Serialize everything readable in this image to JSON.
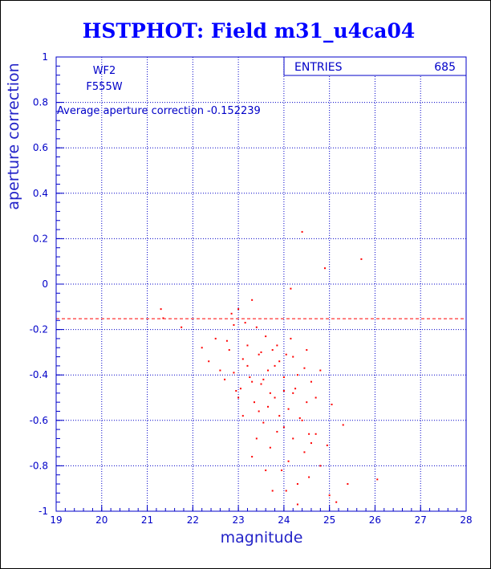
{
  "chart_data": {
    "type": "scatter",
    "title": "HSTPHOT: Field m31_u4ca04",
    "xlabel": "magnitude",
    "ylabel": "aperture correction",
    "xlim": [
      19,
      28
    ],
    "ylim": [
      -1,
      1
    ],
    "xticks": [
      "19",
      "20",
      "21",
      "22",
      "23",
      "24",
      "25",
      "26",
      "27",
      "28"
    ],
    "yticks": [
      "-1",
      "-0.8",
      "-0.6",
      "-0.4",
      "-0.2",
      "0",
      "0.2",
      "0.4",
      "0.6",
      "0.8",
      "1"
    ],
    "grid": true,
    "annotations": {
      "chip": "WF2",
      "filter": "F555W",
      "average": "Average aperture correction -0.152239"
    },
    "stats_box": {
      "label": "ENTRIES",
      "value": "685"
    },
    "reference_line": {
      "y": -0.152239,
      "style": "dashed"
    },
    "points": [
      [
        21.3,
        -0.11
      ],
      [
        21.35,
        -0.15
      ],
      [
        21.75,
        -0.19
      ],
      [
        22.2,
        -0.28
      ],
      [
        22.35,
        -0.34
      ],
      [
        22.5,
        -0.24
      ],
      [
        22.6,
        -0.38
      ],
      [
        22.75,
        -0.25
      ],
      [
        22.8,
        -0.29
      ],
      [
        22.85,
        -0.13
      ],
      [
        22.9,
        -0.18
      ],
      [
        22.95,
        -0.47
      ],
      [
        23.0,
        -0.11
      ],
      [
        23.05,
        -0.46
      ],
      [
        23.1,
        -0.33
      ],
      [
        23.15,
        -0.17
      ],
      [
        23.2,
        -0.27
      ],
      [
        23.25,
        -0.41
      ],
      [
        23.3,
        -0.07
      ],
      [
        23.35,
        -0.52
      ],
      [
        23.4,
        -0.19
      ],
      [
        23.45,
        -0.31
      ],
      [
        23.5,
        -0.44
      ],
      [
        23.55,
        -0.61
      ],
      [
        23.6,
        -0.23
      ],
      [
        23.65,
        -0.38
      ],
      [
        23.7,
        -0.72
      ],
      [
        23.75,
        -0.29
      ],
      [
        23.8,
        -0.5
      ],
      [
        23.85,
        -0.65
      ],
      [
        23.9,
        -0.34
      ],
      [
        23.95,
        -0.82
      ],
      [
        24.0,
        -0.41
      ],
      [
        24.05,
        -0.91
      ],
      [
        24.1,
        -0.55
      ],
      [
        24.15,
        -0.02
      ],
      [
        24.2,
        -0.68
      ],
      [
        24.25,
        -0.46
      ],
      [
        24.3,
        -0.97
      ],
      [
        24.35,
        -0.59
      ],
      [
        24.4,
        0.23
      ],
      [
        24.45,
        -0.74
      ],
      [
        24.5,
        -0.52
      ],
      [
        24.55,
        -0.85
      ],
      [
        24.6,
        -0.43
      ],
      [
        24.7,
        -0.66
      ],
      [
        24.8,
        -0.38
      ],
      [
        24.9,
        0.07
      ],
      [
        24.95,
        -0.71
      ],
      [
        25.05,
        -0.53
      ],
      [
        25.15,
        -0.96
      ],
      [
        25.3,
        -0.62
      ],
      [
        25.4,
        -0.88
      ],
      [
        25.7,
        0.11
      ],
      [
        26.05,
        -0.86
      ],
      [
        23.3,
        -0.76
      ],
      [
        23.45,
        -0.56
      ],
      [
        23.6,
        -0.82
      ],
      [
        23.75,
        -0.91
      ],
      [
        23.85,
        -0.27
      ],
      [
        24.0,
        -0.63
      ],
      [
        24.1,
        -0.78
      ],
      [
        24.2,
        -0.32
      ],
      [
        24.3,
        -0.88
      ],
      [
        24.45,
        -0.37
      ],
      [
        24.55,
        -0.66
      ],
      [
        23.1,
        -0.58
      ],
      [
        23.2,
        -0.36
      ],
      [
        23.4,
        -0.68
      ],
      [
        23.55,
        -0.42
      ],
      [
        23.7,
        -0.48
      ],
      [
        23.9,
        -0.58
      ],
      [
        24.05,
        -0.31
      ],
      [
        24.2,
        -0.48
      ],
      [
        24.4,
        -0.6
      ],
      [
        24.6,
        -0.7
      ],
      [
        24.8,
        -0.8
      ],
      [
        25.0,
        -0.93
      ],
      [
        22.7,
        -0.42
      ],
      [
        22.9,
        -0.39
      ],
      [
        23.0,
        -0.5
      ],
      [
        23.3,
        -0.43
      ],
      [
        23.5,
        -0.3
      ],
      [
        23.65,
        -0.54
      ],
      [
        23.8,
        -0.36
      ],
      [
        24.0,
        -0.47
      ],
      [
        24.15,
        -0.24
      ],
      [
        24.3,
        -0.4
      ],
      [
        24.5,
        -0.29
      ],
      [
        24.7,
        -0.5
      ]
    ]
  }
}
